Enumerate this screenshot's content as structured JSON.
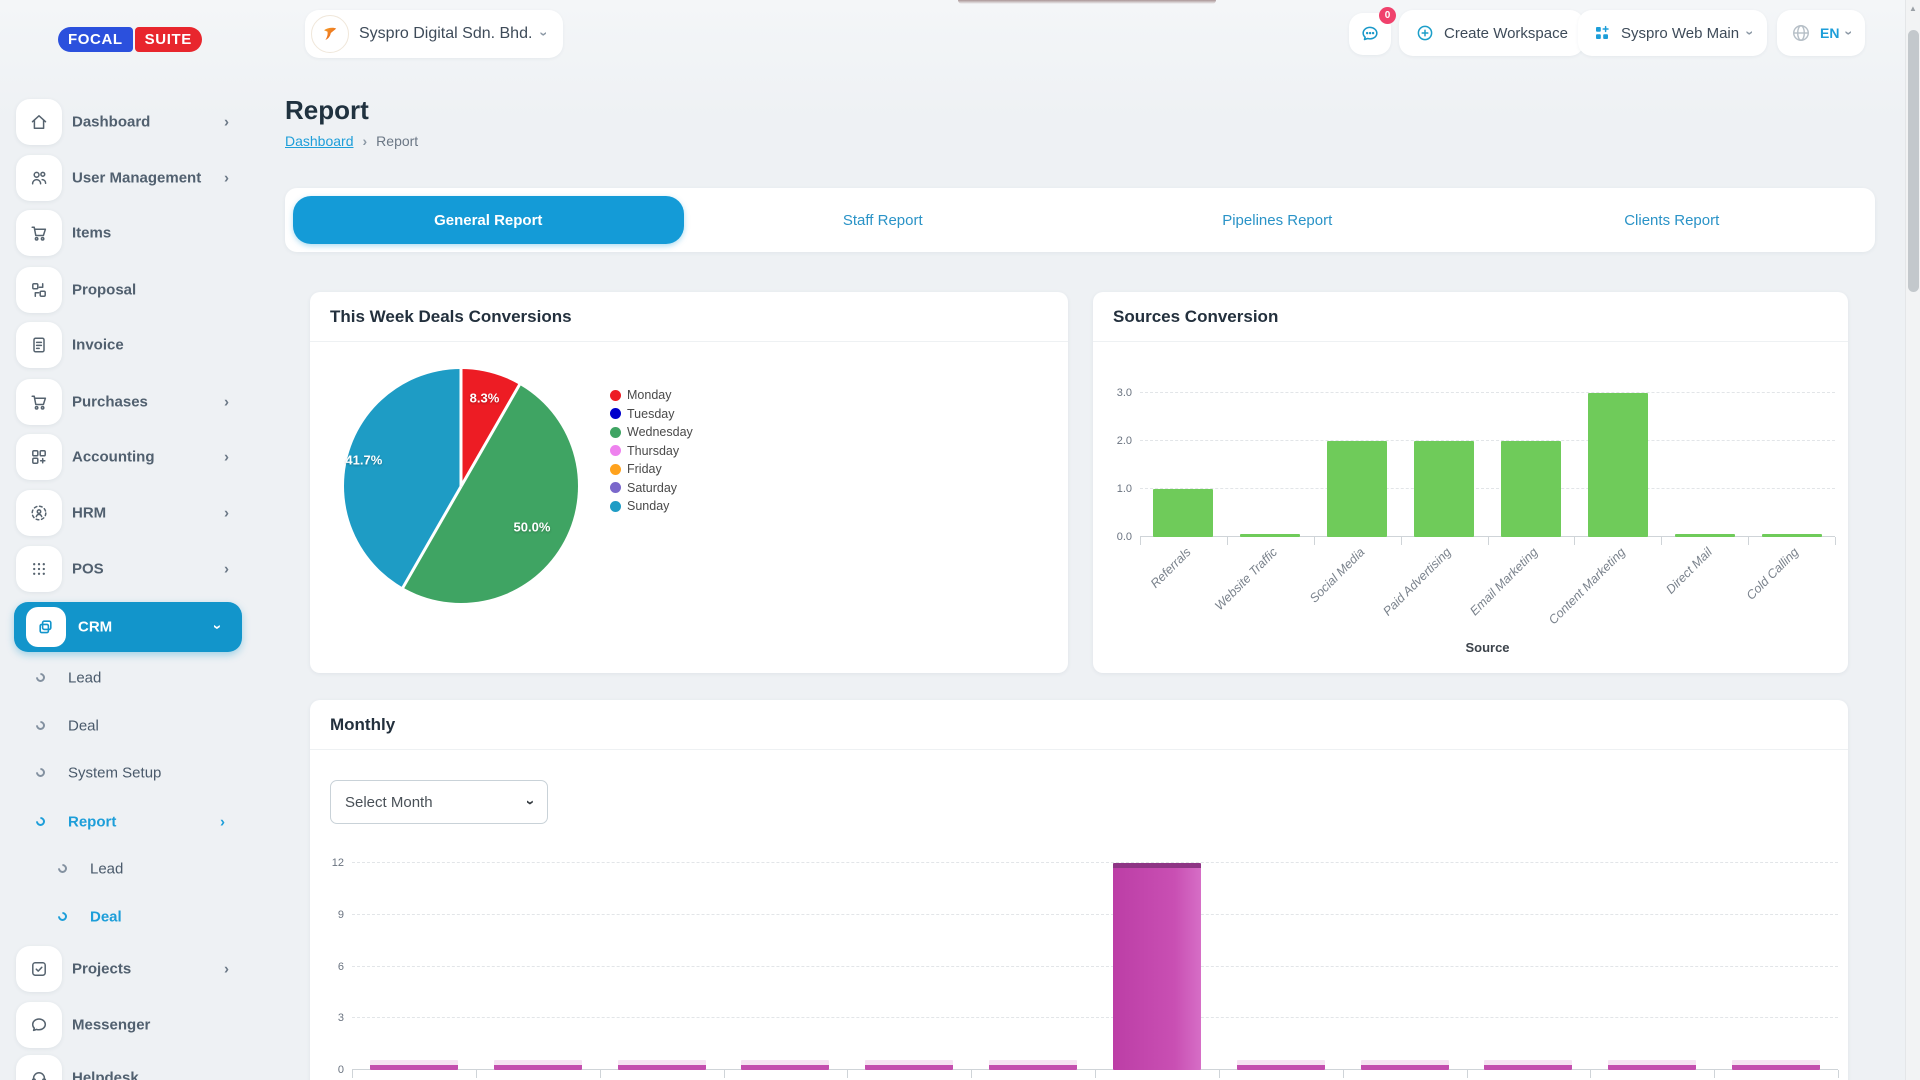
{
  "icons": {
    "chevron_right": "›",
    "breadcrumb_separator": "›",
    "scroll_up": "▲"
  },
  "brand": {
    "focal": "FOCAL",
    "suite": "SUITE"
  },
  "header": {
    "company_name": "Syspro Digital Sdn. Bhd.",
    "messages_badge": "0",
    "create_workspace_label": "Create Workspace",
    "workspace_label": "Syspro Web Main",
    "language_label": "EN"
  },
  "page": {
    "title": "Report",
    "breadcrumb_home": "Dashboard",
    "breadcrumb_current": "Report"
  },
  "tabs": [
    {
      "label": "General Report",
      "active": true
    },
    {
      "label": "Staff Report",
      "active": false
    },
    {
      "label": "Pipelines Report",
      "active": false
    },
    {
      "label": "Clients Report",
      "active": false
    }
  ],
  "sidebar": {
    "items": [
      {
        "label": "Dashboard",
        "expandable": true
      },
      {
        "label": "User Management",
        "expandable": true
      },
      {
        "label": "Items",
        "expandable": false
      },
      {
        "label": "Proposal",
        "expandable": false
      },
      {
        "label": "Invoice",
        "expandable": false
      },
      {
        "label": "Purchases",
        "expandable": true
      },
      {
        "label": "Accounting",
        "expandable": true
      },
      {
        "label": "HRM",
        "expandable": true
      },
      {
        "label": "POS",
        "expandable": true
      },
      {
        "label": "CRM",
        "expandable": true,
        "active": true
      },
      {
        "label": "Projects",
        "expandable": true
      },
      {
        "label": "Messenger",
        "expandable": false
      },
      {
        "label": "Helpdesk",
        "expandable": false
      }
    ],
    "crm_children": [
      {
        "label": "Lead"
      },
      {
        "label": "Deal"
      },
      {
        "label": "System Setup"
      },
      {
        "label": "Report",
        "active": true,
        "expandable": true
      }
    ],
    "report_children": [
      {
        "label": "Lead"
      },
      {
        "label": "Deal",
        "active": true
      }
    ]
  },
  "colors": {
    "primary": "#149bd7",
    "sidebar_active_bg": "#1295cb",
    "logo_blue": "#2b50dd",
    "logo_red": "#e8262d",
    "badge_pink": "#f0416c",
    "link_blue": "#1d9ed9"
  },
  "chart_data": [
    {
      "id": "this-week-deals-conversions",
      "type": "pie",
      "title": "This Week Deals Conversions",
      "labels": [
        "Monday",
        "Tuesday",
        "Wednesday",
        "Thursday",
        "Friday",
        "Saturday",
        "Sunday"
      ],
      "values_percent": [
        8.3,
        0,
        50.0,
        0,
        0,
        0,
        41.7
      ],
      "colors": [
        "#ed1c24",
        "#0000cc",
        "#3fa463",
        "#ee82ee",
        "#ffa21d",
        "#7a67cb",
        "#1e9cc5"
      ],
      "slice_labels": [
        "8.3%",
        "50.0%",
        "41.7%"
      ],
      "legend_position": "right"
    },
    {
      "id": "sources-conversion",
      "type": "bar",
      "title": "Sources Conversion",
      "categories": [
        "Referrals",
        "Website Traffic",
        "Social Media",
        "Paid Advertising",
        "Email Marketing",
        "Content Marketing",
        "Direct Mail",
        "Cold Calling"
      ],
      "values": [
        1,
        0,
        2,
        2,
        2,
        3,
        0,
        0
      ],
      "bar_color": "#6fcb5a",
      "xlabel": "Source",
      "ytick_values": [
        0,
        1,
        2,
        3
      ],
      "ytick_labels": [
        "0.0",
        "1.0",
        "2.0",
        "3.0"
      ],
      "ylim": [
        0,
        3
      ],
      "grid": "dashed-horizontal"
    },
    {
      "id": "monthly",
      "type": "bar",
      "title": "Monthly",
      "select_month": "Select Month",
      "num_bars": 12,
      "values": [
        0,
        0,
        0,
        0,
        0,
        0,
        12,
        0,
        0,
        0,
        0,
        0
      ],
      "x_labels_visible": false,
      "bar_color": "#c44fae",
      "ytick_values": [
        0,
        3,
        6,
        9,
        12
      ],
      "ytick_labels": [
        "0",
        "3",
        "6",
        "9",
        "12"
      ],
      "ylim": [
        0,
        12
      ],
      "grid": "dashed-horizontal"
    }
  ]
}
